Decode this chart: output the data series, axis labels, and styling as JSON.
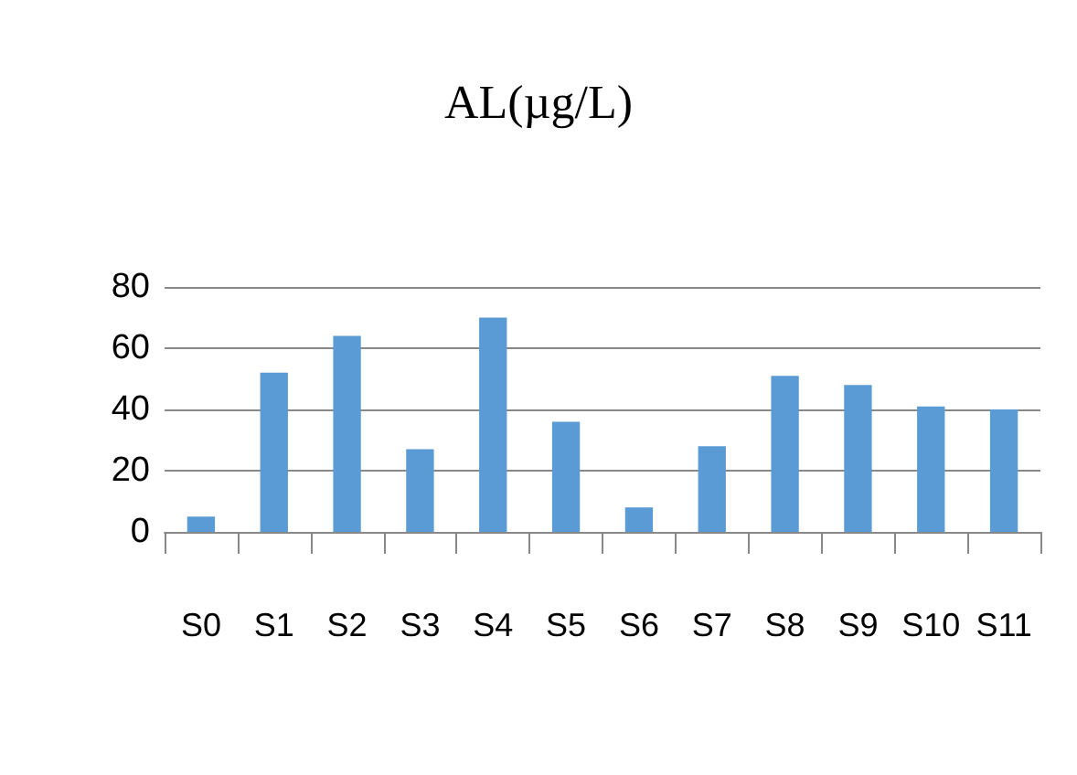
{
  "chart_data": {
    "type": "bar",
    "title": "AL(µg/L)",
    "categories": [
      "S0",
      "S1",
      "S2",
      "S3",
      "S4",
      "S5",
      "S6",
      "S7",
      "S8",
      "S9",
      "S10",
      "S11"
    ],
    "values": [
      5,
      52,
      64,
      27,
      70,
      36,
      8,
      28,
      51,
      48,
      41,
      40
    ],
    "color": "#5b9bd5",
    "ylim": [
      0,
      80
    ],
    "yticks": [
      0,
      20,
      40,
      60,
      80
    ],
    "grid": "y"
  }
}
